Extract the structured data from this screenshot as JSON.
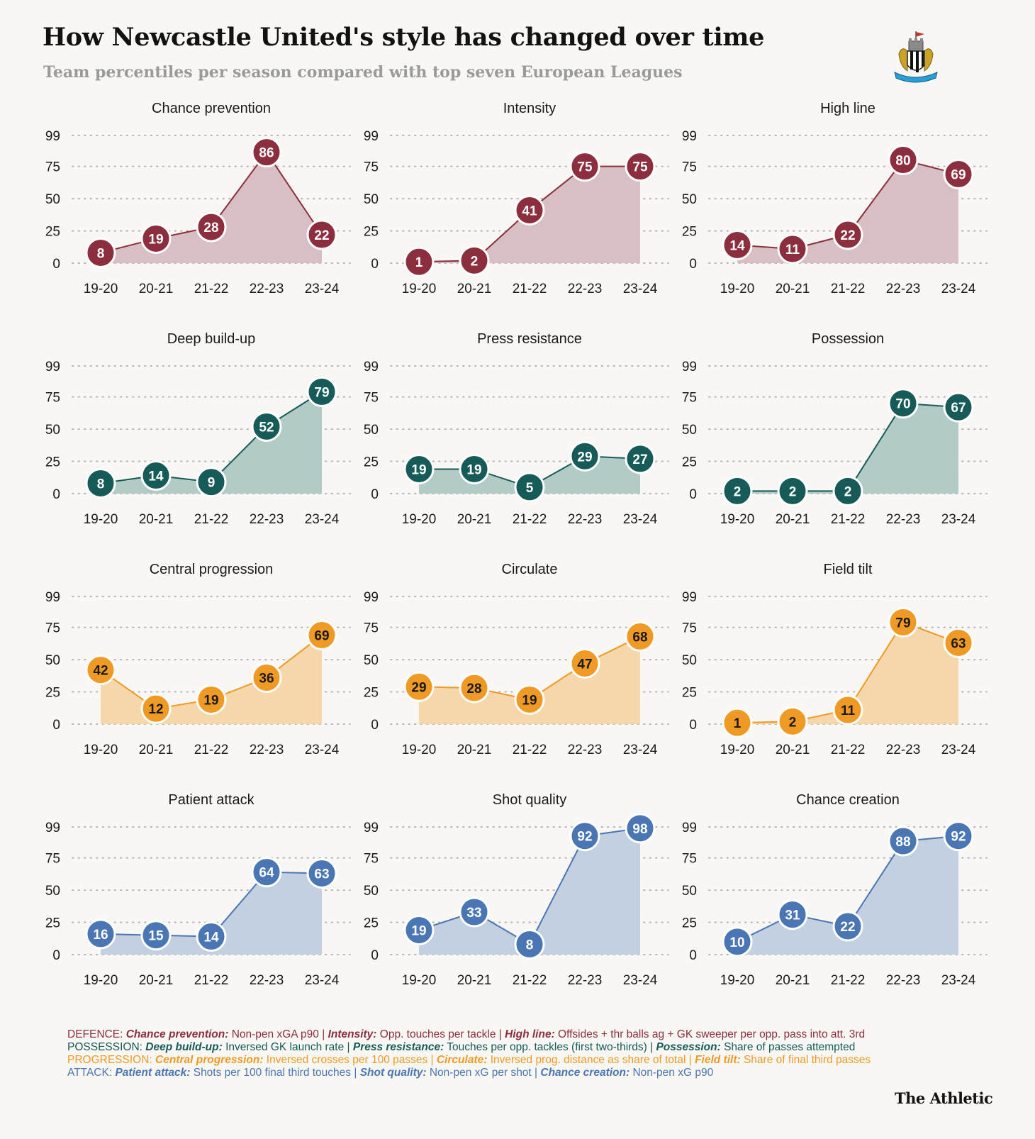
{
  "header": {
    "title": "How Newcastle United's style has changed over time",
    "subtitle": "Team percentiles per season compared with top seven European Leagues"
  },
  "crest_icon": "newcastle-united-crest-icon",
  "colors": {
    "defence": "#8c2e3e",
    "defence_fill": "#d8bfc4",
    "possession": "#165b57",
    "possession_fill": "#b3cbc7",
    "progression": "#f09a26",
    "progression_fill": "#f6d7ac",
    "attack": "#4a76b3",
    "attack_fill": "#c3d0e2",
    "grid": "#b5b5b5",
    "background": "#f8f7f3"
  },
  "chart_data": [
    {
      "type": "area",
      "title": "Chance prevention",
      "group": "defence",
      "x": [
        "19-20",
        "20-21",
        "21-22",
        "22-23",
        "23-24"
      ],
      "values": [
        8,
        19,
        28,
        86,
        22
      ],
      "yticks": [
        0,
        25,
        50,
        75,
        99
      ],
      "ylim": [
        0,
        99
      ],
      "grid": true
    },
    {
      "type": "area",
      "title": "Intensity",
      "group": "defence",
      "x": [
        "19-20",
        "20-21",
        "21-22",
        "22-23",
        "23-24"
      ],
      "values": [
        1,
        2,
        41,
        75,
        75
      ],
      "yticks": [
        0,
        25,
        50,
        75,
        99
      ],
      "ylim": [
        0,
        99
      ],
      "grid": true
    },
    {
      "type": "area",
      "title": "High line",
      "group": "defence",
      "x": [
        "19-20",
        "20-21",
        "21-22",
        "22-23",
        "23-24"
      ],
      "values": [
        14,
        11,
        22,
        80,
        69
      ],
      "yticks": [
        0,
        25,
        50,
        75,
        99
      ],
      "ylim": [
        0,
        99
      ],
      "grid": true
    },
    {
      "type": "area",
      "title": "Deep build-up",
      "group": "possession",
      "x": [
        "19-20",
        "20-21",
        "21-22",
        "22-23",
        "23-24"
      ],
      "values": [
        8,
        14,
        9,
        52,
        79
      ],
      "yticks": [
        0,
        25,
        50,
        75,
        99
      ],
      "ylim": [
        0,
        99
      ],
      "grid": true
    },
    {
      "type": "area",
      "title": "Press resistance",
      "group": "possession",
      "x": [
        "19-20",
        "20-21",
        "21-22",
        "22-23",
        "23-24"
      ],
      "values": [
        19,
        19,
        5,
        29,
        27
      ],
      "yticks": [
        0,
        25,
        50,
        75,
        99
      ],
      "ylim": [
        0,
        99
      ],
      "grid": true
    },
    {
      "type": "area",
      "title": "Possession",
      "group": "possession",
      "x": [
        "19-20",
        "20-21",
        "21-22",
        "22-23",
        "23-24"
      ],
      "values": [
        2,
        2,
        2,
        70,
        67
      ],
      "yticks": [
        0,
        25,
        50,
        75,
        99
      ],
      "ylim": [
        0,
        99
      ],
      "grid": true
    },
    {
      "type": "area",
      "title": "Central progression",
      "group": "progression",
      "x": [
        "19-20",
        "20-21",
        "21-22",
        "22-23",
        "23-24"
      ],
      "values": [
        42,
        12,
        19,
        36,
        69
      ],
      "yticks": [
        0,
        25,
        50,
        75,
        99
      ],
      "ylim": [
        0,
        99
      ],
      "grid": true
    },
    {
      "type": "area",
      "title": "Circulate",
      "group": "progression",
      "x": [
        "19-20",
        "20-21",
        "21-22",
        "22-23",
        "23-24"
      ],
      "values": [
        29,
        28,
        19,
        47,
        68
      ],
      "yticks": [
        0,
        25,
        50,
        75,
        99
      ],
      "ylim": [
        0,
        99
      ],
      "grid": true
    },
    {
      "type": "area",
      "title": "Field tilt",
      "group": "progression",
      "x": [
        "19-20",
        "20-21",
        "21-22",
        "22-23",
        "23-24"
      ],
      "values": [
        1,
        2,
        11,
        79,
        63
      ],
      "yticks": [
        0,
        25,
        50,
        75,
        99
      ],
      "ylim": [
        0,
        99
      ],
      "grid": true
    },
    {
      "type": "area",
      "title": "Patient attack",
      "group": "attack",
      "x": [
        "19-20",
        "20-21",
        "21-22",
        "22-23",
        "23-24"
      ],
      "values": [
        16,
        15,
        14,
        64,
        63
      ],
      "yticks": [
        0,
        25,
        50,
        75,
        99
      ],
      "ylim": [
        0,
        99
      ],
      "grid": true
    },
    {
      "type": "area",
      "title": "Shot quality",
      "group": "attack",
      "x": [
        "19-20",
        "20-21",
        "21-22",
        "22-23",
        "23-24"
      ],
      "values": [
        19,
        33,
        8,
        92,
        98
      ],
      "yticks": [
        0,
        25,
        50,
        75,
        99
      ],
      "ylim": [
        0,
        99
      ],
      "grid": true
    },
    {
      "type": "area",
      "title": "Chance creation",
      "group": "attack",
      "x": [
        "19-20",
        "20-21",
        "21-22",
        "22-23",
        "23-24"
      ],
      "values": [
        10,
        31,
        22,
        88,
        92
      ],
      "yticks": [
        0,
        25,
        50,
        75,
        99
      ],
      "ylim": [
        0,
        99
      ],
      "grid": true
    }
  ],
  "footnotes": [
    {
      "group": "defence",
      "parts": [
        {
          "t": "DEFENCE: ",
          "b": false
        },
        {
          "t": "Chance prevention:",
          "b": true
        },
        {
          "t": " Non-pen xGA p90 | ",
          "b": false
        },
        {
          "t": "Intensity:",
          "b": true
        },
        {
          "t": " Opp. touches per tackle | ",
          "b": false
        },
        {
          "t": "High line:",
          "b": true
        },
        {
          "t": " Offsides + thr balls ag + GK sweeper per opp. pass into att. 3rd",
          "b": false
        }
      ]
    },
    {
      "group": "possession",
      "parts": [
        {
          "t": "POSSESSION: ",
          "b": false
        },
        {
          "t": "Deep build-up:",
          "b": true
        },
        {
          "t": " Inversed GK launch rate | ",
          "b": false
        },
        {
          "t": "Press resistance:",
          "b": true
        },
        {
          "t": " Touches per opp. tackles (first two-thirds) | ",
          "b": false
        },
        {
          "t": "Possession:",
          "b": true
        },
        {
          "t": " Share of passes attempted",
          "b": false
        }
      ]
    },
    {
      "group": "progression",
      "parts": [
        {
          "t": "PROGRESSION: ",
          "b": false
        },
        {
          "t": "Central progression:",
          "b": true
        },
        {
          "t": " Inversed crosses per 100 passes | ",
          "b": false
        },
        {
          "t": "Circulate:",
          "b": true
        },
        {
          "t": " Inversed prog. distance as share of total | ",
          "b": false
        },
        {
          "t": "Field tilt:",
          "b": true
        },
        {
          "t": " Share of final third passes",
          "b": false
        }
      ]
    },
    {
      "group": "attack",
      "parts": [
        {
          "t": "ATTACK: ",
          "b": false
        },
        {
          "t": "Patient attack:",
          "b": true
        },
        {
          "t": " Shots per 100 final third touches | ",
          "b": false
        },
        {
          "t": "Shot quality:",
          "b": true
        },
        {
          "t": " Non-pen xG per shot | ",
          "b": false
        },
        {
          "t": "Chance creation:",
          "b": true
        },
        {
          "t": " Non-pen xG p90",
          "b": false
        }
      ]
    }
  ],
  "brand": "The Athletic"
}
